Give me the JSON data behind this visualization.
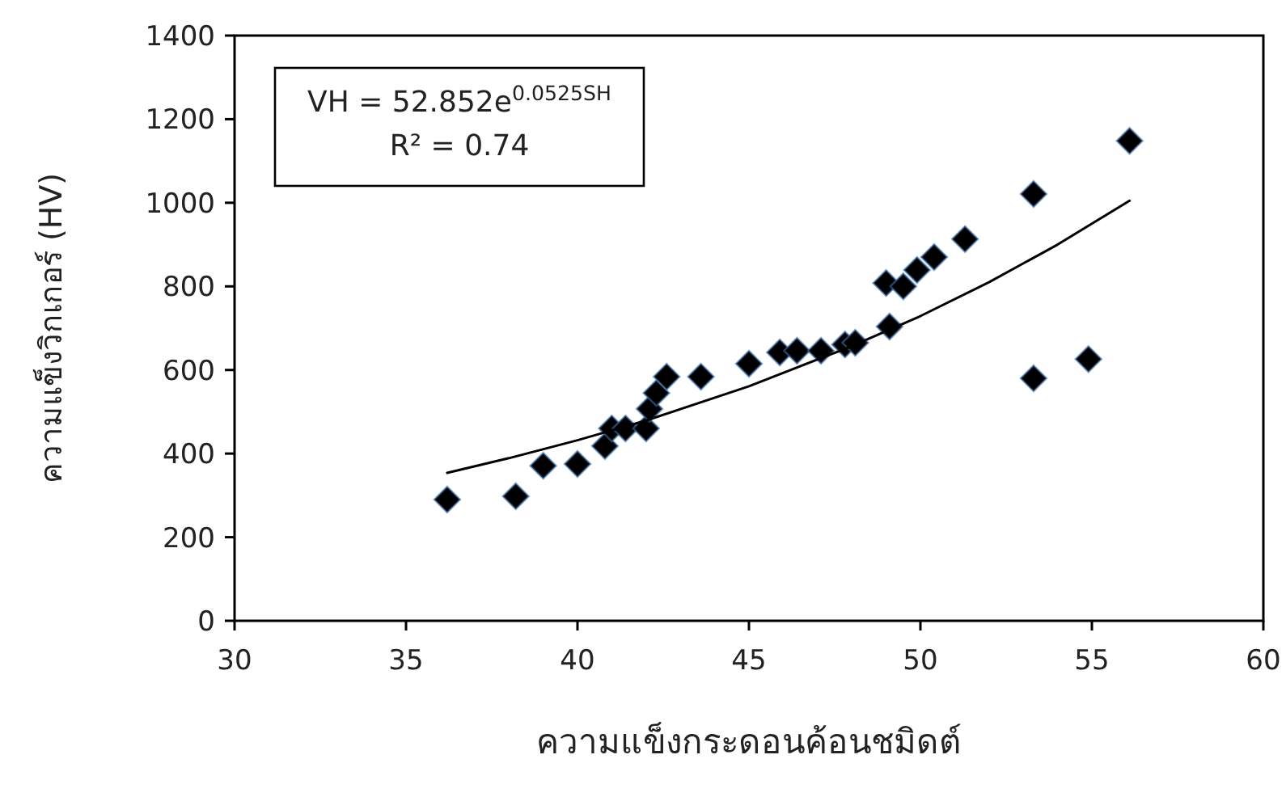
{
  "chart_data": {
    "type": "scatter",
    "xlabel": "ความแข็งกระดอนค้อนชมิดต์",
    "ylabel": "ความแข็งวิกเกอร์ (HV)",
    "annotations": [
      "VH = 52.852e$^{0.0525SH}$",
      "R² = 0.74"
    ],
    "xlim": [
      30,
      60
    ],
    "xticks": [
      30,
      35,
      40,
      45,
      50,
      55,
      60
    ],
    "ylim": [
      0,
      1400
    ],
    "yticks": [
      0,
      200,
      400,
      600,
      800,
      1000,
      1200,
      1400
    ],
    "grid": false,
    "series": [
      {
        "color": "#000000",
        "marker": "diamond",
        "x": [
          36.2,
          38.2,
          39.0,
          40.0,
          40.8,
          41.0,
          41.4,
          42.0,
          42.1,
          42.3,
          42.6,
          43.6,
          45.0,
          45.9,
          46.4,
          47.1,
          47.8,
          48.1,
          49.1,
          49.0,
          49.5,
          49.9,
          50.4,
          51.3,
          53.3,
          56.1,
          53.3,
          54.9
        ],
        "values": [
          290,
          298,
          371,
          375,
          418,
          460,
          460,
          460,
          507,
          545,
          584,
          584,
          615,
          642,
          646,
          646,
          661,
          665,
          704,
          808,
          800,
          839,
          870,
          913,
          1021,
          1148,
          580,
          626
        ]
      },
      {
        "type": "line",
        "color": "#000000",
        "marker": "none",
        "line_style": "solid",
        "x": [
          36.2,
          38,
          40,
          42,
          45,
          48,
          50,
          52,
          54,
          56.1
        ],
        "values": [
          354,
          389,
          432,
          479,
          561,
          657,
          729,
          810,
          900,
          1005
        ]
      }
    ]
  }
}
